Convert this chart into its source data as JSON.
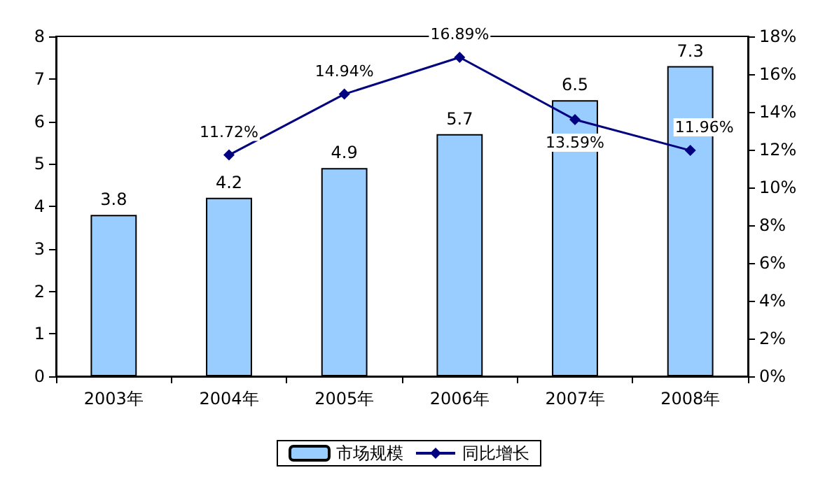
{
  "chart_data": {
    "type": "bar",
    "categories": [
      "2003年",
      "2004年",
      "2005年",
      "2006年",
      "2007年",
      "2008年"
    ],
    "series": [
      {
        "name": "市场规模",
        "color": "#99ccff",
        "values": [
          3.8,
          4.2,
          4.9,
          5.7,
          6.5,
          7.3
        ]
      },
      {
        "name": "同比增长",
        "type": "line",
        "axis": "y2",
        "color": "#000080",
        "marker": "diamond",
        "values": [
          null,
          11.72,
          14.94,
          16.89,
          13.59,
          11.96
        ],
        "value_labels": [
          null,
          "11.72%",
          "14.94%",
          "16.89%",
          "13.59%",
          "11.96%"
        ]
      }
    ],
    "data_labels": true,
    "ylim": [
      0,
      8
    ],
    "yticks": [
      0,
      1,
      2,
      3,
      4,
      5,
      6,
      7,
      8
    ],
    "y2lim": [
      0,
      18
    ],
    "y2ticks": [
      {
        "value": 0,
        "label": "0%"
      },
      {
        "value": 2,
        "label": "2%"
      },
      {
        "value": 4,
        "label": "4%"
      },
      {
        "value": 6,
        "label": "6%"
      },
      {
        "value": 8,
        "label": "8%"
      },
      {
        "value": 10,
        "label": "10%"
      },
      {
        "value": 12,
        "label": "12%"
      },
      {
        "value": 14,
        "label": "14%"
      },
      {
        "value": 16,
        "label": "16%"
      },
      {
        "value": 18,
        "label": "18%"
      }
    ],
    "grid": false,
    "legend": "bottom"
  }
}
